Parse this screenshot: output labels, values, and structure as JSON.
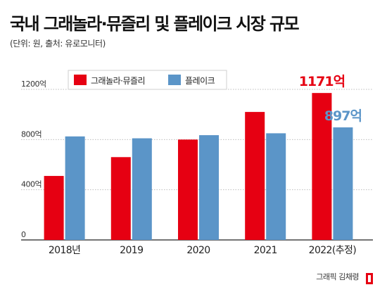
{
  "header": {
    "title": "국내 그래놀라·뮤즐리 및 플레이크 시장 규모",
    "subtitle": "(단위: 원, 출처: 유로모니터)"
  },
  "credit": "그래픽 김채령",
  "colors": {
    "granola": "#e60012",
    "flake": "#5b95c8",
    "annotation_granola": "#e60012",
    "annotation_flake": "#5b95c8"
  },
  "chart_data": {
    "type": "bar",
    "categories": [
      "2018년",
      "2019",
      "2020",
      "2021",
      "2022(추정)"
    ],
    "series": [
      {
        "name": "그래놀라·뮤즐리",
        "values": [
          510,
          660,
          800,
          1020,
          1171
        ]
      },
      {
        "name": "플레이크",
        "values": [
          825,
          810,
          835,
          850,
          897
        ]
      }
    ],
    "ylim": [
      0,
      1200
    ],
    "yticks": [
      {
        "value": 0,
        "label": "0"
      },
      {
        "value": 400,
        "label": "400억"
      },
      {
        "value": 800,
        "label": "800억"
      },
      {
        "value": 1200,
        "label": "1200억"
      }
    ],
    "annotations": [
      {
        "series": 0,
        "index": 4,
        "text": "1171억"
      },
      {
        "series": 1,
        "index": 4,
        "text": "897억"
      }
    ],
    "grid": true,
    "legend_position": "top-left"
  }
}
